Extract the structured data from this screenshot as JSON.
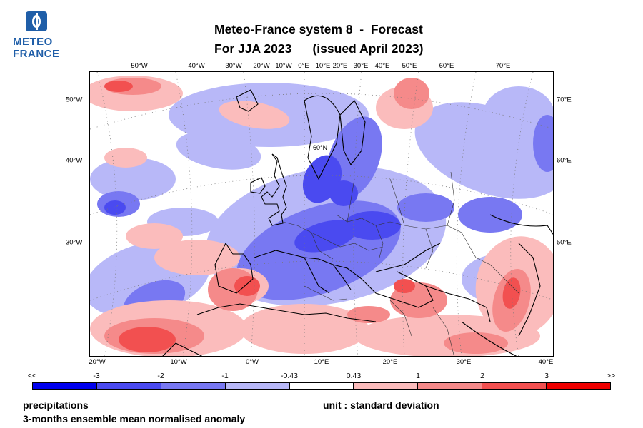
{
  "logo": {
    "line1": "METEO",
    "line2": "FRANCE"
  },
  "title": {
    "line1": "Meteo-France system 8  -  Forecast",
    "line2": "For JJA 2023      (issued April 2023)"
  },
  "axes": {
    "top_ticks": [
      "50°W",
      "40°W",
      "30°W",
      "20°W",
      "10°W",
      "0°E",
      "10°E",
      "20°E",
      "30°E",
      "40°E",
      "50°E",
      "60°E",
      "70°E"
    ],
    "bottom_ticks": [
      "20°W",
      "10°W",
      "0°W",
      "10°E",
      "20°E",
      "30°E",
      "40°E"
    ],
    "left_ticks": [
      "50°W",
      "40°W",
      "30°W"
    ],
    "right_ticks": [
      "70°E",
      "60°E",
      "50°E"
    ],
    "parallel_label": "60°N"
  },
  "legend": {
    "labels": [
      "<<",
      "-3",
      "-2",
      "-1",
      "-0.43",
      "0.43",
      "1",
      "2",
      "3",
      ">>"
    ],
    "colors": [
      "#0000ee",
      "#4a4af0",
      "#7878f2",
      "#b8b8f8",
      "#ffffff",
      "#fbbcbc",
      "#f58a8a",
      "#f25050",
      "#ee0000"
    ]
  },
  "footer": {
    "variable": "precipitations",
    "description": "3-months ensemble mean normalised anomaly",
    "unit": "unit : standard deviation"
  },
  "map_colors": {
    "ocean_bg": "#ffffff",
    "light_blue": "#b8b8f8",
    "mid_blue": "#7878f2",
    "dark_blue": "#4a4af0",
    "light_red": "#fbbcbc",
    "mid_red": "#f58a8a",
    "dark_red": "#f25050",
    "coast": "#000000",
    "border": "#333333",
    "grid": "#777777"
  }
}
